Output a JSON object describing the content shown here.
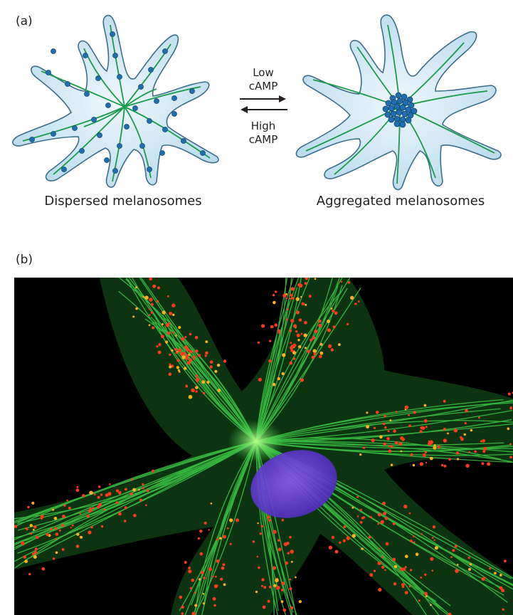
{
  "panel_a": {
    "label": "(a)",
    "left_caption": "Dispersed melanosomes",
    "right_caption": "Aggregated melanosomes",
    "forward_arrow_label": [
      "Low",
      "cAMP"
    ],
    "reverse_arrow_label": [
      "High",
      "cAMP"
    ]
  },
  "panel_b": {
    "label": "(b)"
  },
  "colors": {
    "cell_fill": "#d6ecf7",
    "cell_outline": "#3b6e8c",
    "microtubule": "#1a9a4a",
    "melanosome": "#1f6fb0",
    "photo_background": "#000000",
    "photo_microtubule": "#3fd24a",
    "photo_melanosome": "#ff3b1f",
    "photo_nucleus": "#6a3fd8"
  }
}
